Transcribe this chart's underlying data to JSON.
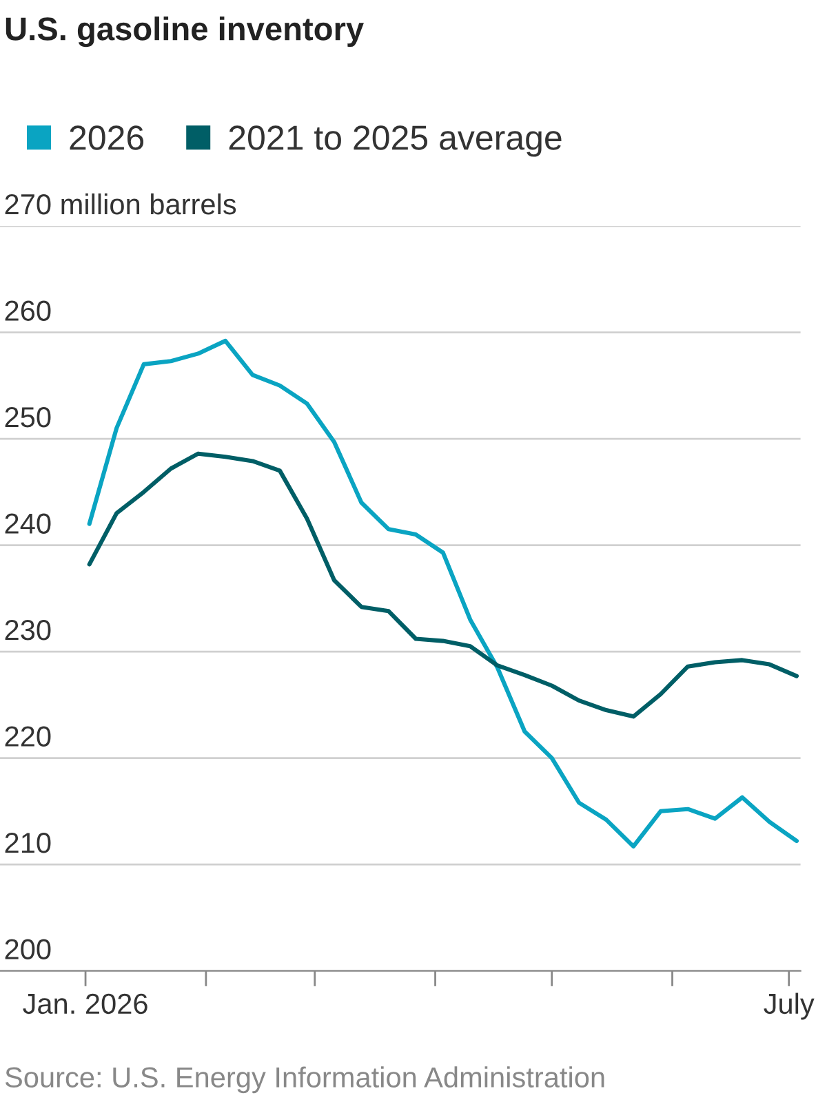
{
  "chart_data": {
    "type": "line",
    "title": "U.S. gasoline inventory",
    "x": [
      "2026-01-02",
      "2026-01-09",
      "2026-01-16",
      "2026-01-23",
      "2026-01-30",
      "2026-02-06",
      "2026-02-13",
      "2026-02-20",
      "2026-02-27",
      "2026-03-06",
      "2026-03-13",
      "2026-03-20",
      "2026-03-27",
      "2026-04-03",
      "2026-04-10",
      "2026-04-17",
      "2026-04-24",
      "2026-05-01",
      "2026-05-08",
      "2026-05-15",
      "2026-05-22",
      "2026-05-29",
      "2026-06-05",
      "2026-06-12",
      "2026-06-19",
      "2026-06-26",
      "2026-07-03"
    ],
    "series": [
      {
        "name": "2026",
        "color": "#0aa4c2",
        "values": [
          242,
          251,
          257,
          257.3,
          258,
          259.2,
          256,
          255,
          253.3,
          249.7,
          244,
          241.5,
          241,
          239.3,
          233,
          228.5,
          222.5,
          220,
          215.8,
          214.2,
          211.7,
          215,
          215.2,
          214.3,
          216.3,
          214,
          212.2
        ]
      },
      {
        "name": "2021 to 2025 average",
        "color": "#005e66",
        "values": [
          238.2,
          243,
          245,
          247.2,
          248.6,
          248.3,
          247.9,
          247,
          242.5,
          236.7,
          234.2,
          233.8,
          231.2,
          231,
          230.5,
          228.7,
          227.8,
          226.8,
          225.4,
          224.5,
          223.9,
          226,
          228.6,
          229,
          229.2,
          228.8,
          227.7
        ]
      }
    ],
    "xlim": [
      "2025-12-10",
      "2026-07-04"
    ],
    "xticks": [
      {
        "value": "2026-01-01",
        "label": "Jan. 2026"
      },
      {
        "value": "2026-02-01",
        "label": null
      },
      {
        "value": "2026-03-01",
        "label": null
      },
      {
        "value": "2026-04-01",
        "label": null
      },
      {
        "value": "2026-05-01",
        "label": null
      },
      {
        "value": "2026-06-01",
        "label": null
      },
      {
        "value": "2026-07-01",
        "label": "July"
      }
    ],
    "ylim": [
      200,
      270
    ],
    "yticks": [
      200,
      210,
      220,
      230,
      240,
      250,
      260,
      {
        "value": 270,
        "label": "270 million barrels"
      }
    ],
    "grid": "y",
    "legend": "top",
    "marker": "none",
    "line_style": "solid",
    "annotations": [
      "Source: U.S. Energy Information Administration"
    ]
  }
}
